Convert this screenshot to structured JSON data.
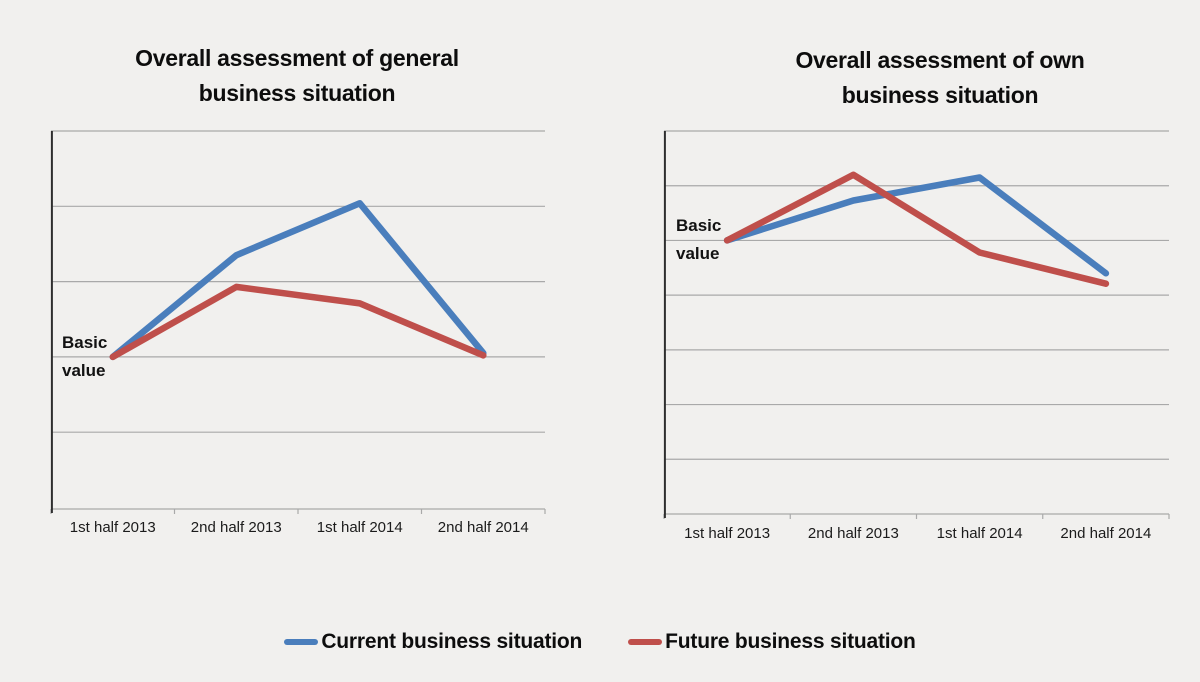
{
  "page": {
    "background": "#f1f0ee"
  },
  "colors": {
    "series_blue": "#4a7ebc",
    "series_red": "#bf4f4b",
    "gridline": "#a9a9a9",
    "axis": "#2e2e2e",
    "text": "#0d0d0d"
  },
  "legend": {
    "items": [
      {
        "label": "Current business situation",
        "color": "#4a7ebc"
      },
      {
        "label": "Future business situation",
        "color": "#bf4f4b"
      }
    ],
    "position": "bottom-center-shared"
  },
  "chart_data": [
    {
      "type": "line",
      "title": "Overall assessment of general business situation",
      "categories": [
        "1st half 2013",
        "2nd half 2013",
        "1st half 2014",
        "2nd half 2014"
      ],
      "series": [
        {
          "name": "Current business situation",
          "color": "#4a7ebc",
          "values": [
            0,
            1.35,
            2.04,
            0.05
          ]
        },
        {
          "name": "Future business situation",
          "color": "#bf4f4b",
          "values": [
            0,
            0.93,
            0.71,
            0.02
          ]
        }
      ],
      "annotation": "Basic value",
      "value_unit": "gridline steps above the Basic value line (no numeric axis shown)",
      "ylim": [
        -2.02,
        3.0
      ],
      "gridline_values": [
        3,
        2,
        1,
        0,
        -1
      ],
      "basic_value_level": 0,
      "grid": "horizontal-only",
      "xlabel": "",
      "ylabel": ""
    },
    {
      "type": "line",
      "title": "Overall assessment of own business situation",
      "categories": [
        "1st half 2013",
        "2nd half 2013",
        "1st half 2014",
        "2nd half 2014"
      ],
      "series": [
        {
          "name": "Current business situation",
          "color": "#4a7ebc",
          "values": [
            0,
            0.73,
            1.15,
            -0.6
          ]
        },
        {
          "name": "Future business situation",
          "color": "#bf4f4b",
          "values": [
            0,
            1.2,
            -0.22,
            -0.79
          ]
        }
      ],
      "annotation": "Basic value",
      "value_unit": "gridline steps above the Basic value line (no numeric axis shown)",
      "ylim": [
        -5.0,
        2.0
      ],
      "gridline_values": [
        2,
        1,
        0,
        -1,
        -2,
        -3,
        -4
      ],
      "basic_value_level": 0,
      "grid": "horizontal-only",
      "xlabel": "",
      "ylabel": ""
    }
  ]
}
